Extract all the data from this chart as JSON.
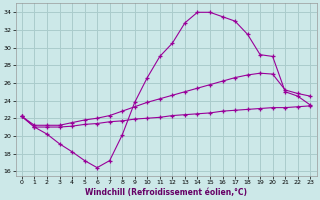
{
  "xlabel": "Windchill (Refroidissement éolien,°C)",
  "bg_color": "#cce8e8",
  "grid_color": "#aacccc",
  "line_color": "#990099",
  "xlim": [
    -0.5,
    23.5
  ],
  "ylim": [
    15.5,
    35.0
  ],
  "xticks": [
    0,
    1,
    2,
    3,
    4,
    5,
    6,
    7,
    8,
    9,
    10,
    11,
    12,
    13,
    14,
    15,
    16,
    17,
    18,
    19,
    20,
    21,
    22,
    23
  ],
  "yticks": [
    16,
    18,
    20,
    22,
    24,
    26,
    28,
    30,
    32,
    34
  ],
  "line1_x": [
    0,
    1,
    2,
    3,
    4,
    5,
    6,
    7,
    8,
    9,
    10,
    11,
    12,
    13,
    14,
    15,
    16,
    17,
    18,
    19,
    20,
    21,
    22,
    23
  ],
  "line1_y": [
    22.2,
    21.0,
    20.2,
    19.1,
    18.2,
    17.2,
    16.4,
    17.2,
    20.1,
    23.8,
    26.6,
    29.0,
    30.5,
    32.8,
    34.0,
    34.0,
    33.5,
    33.0,
    31.5,
    29.2,
    29.0,
    25.0,
    24.5,
    23.5
  ],
  "line2_x": [
    0,
    1,
    2,
    3,
    4,
    5,
    6,
    7,
    8,
    9,
    10,
    11,
    12,
    13,
    14,
    15,
    16,
    17,
    18,
    19,
    20,
    21,
    22,
    23
  ],
  "line2_y": [
    22.2,
    21.2,
    21.2,
    21.2,
    21.5,
    21.8,
    22.0,
    22.3,
    22.8,
    23.3,
    23.8,
    24.2,
    24.6,
    25.0,
    25.4,
    25.8,
    26.2,
    26.6,
    26.9,
    27.1,
    27.0,
    25.2,
    24.8,
    24.5
  ],
  "line3_x": [
    0,
    1,
    2,
    3,
    4,
    5,
    6,
    7,
    8,
    9,
    10,
    11,
    12,
    13,
    14,
    15,
    16,
    17,
    18,
    19,
    20,
    21,
    22,
    23
  ],
  "line3_y": [
    22.2,
    21.0,
    21.0,
    21.0,
    21.1,
    21.3,
    21.4,
    21.6,
    21.7,
    21.9,
    22.0,
    22.1,
    22.3,
    22.4,
    22.5,
    22.6,
    22.8,
    22.9,
    23.0,
    23.1,
    23.2,
    23.2,
    23.3,
    23.4
  ]
}
